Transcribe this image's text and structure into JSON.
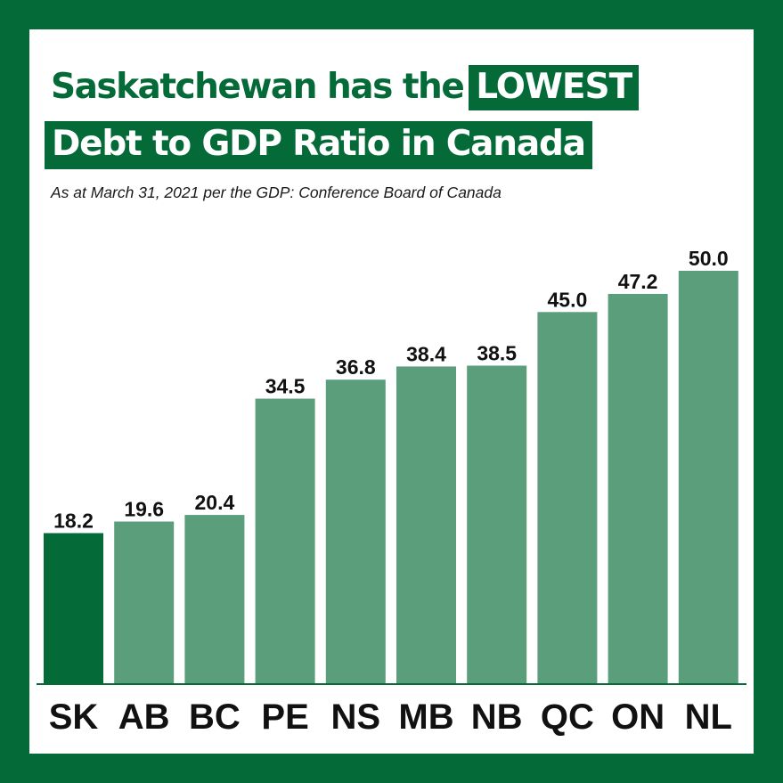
{
  "title": {
    "line1_prefix": "Saskatchewan has the",
    "line1_highlight": "LOWEST",
    "line2_highlight": "Debt to GDP Ratio in Canada"
  },
  "subtitle": "As at March 31, 2021 per the GDP: Conference Board of Canada",
  "colors": {
    "frame": "#046a38",
    "highlight_bar": "#046a38",
    "bar": "#5a9e7c",
    "axis": "#046a38"
  },
  "chart_data": {
    "type": "bar",
    "title": "Saskatchewan has the LOWEST Debt to GDP Ratio in Canada",
    "subtitle": "As at March 31, 2021 per the GDP: Conference Board of Canada",
    "xlabel": "",
    "ylabel": "",
    "categories": [
      "SK",
      "AB",
      "BC",
      "PE",
      "NS",
      "MB",
      "NB",
      "QC",
      "ON",
      "NL"
    ],
    "values": [
      18.2,
      19.6,
      20.4,
      34.5,
      36.8,
      38.4,
      38.5,
      45.0,
      47.2,
      50.0
    ],
    "value_labels": [
      "18.2",
      "19.6",
      "20.4",
      "34.5",
      "36.8",
      "38.4",
      "38.5",
      "45.0",
      "47.2",
      "50.0"
    ],
    "highlight_category": "SK",
    "ylim": [
      0,
      50
    ],
    "grid": false,
    "legend": "none"
  }
}
